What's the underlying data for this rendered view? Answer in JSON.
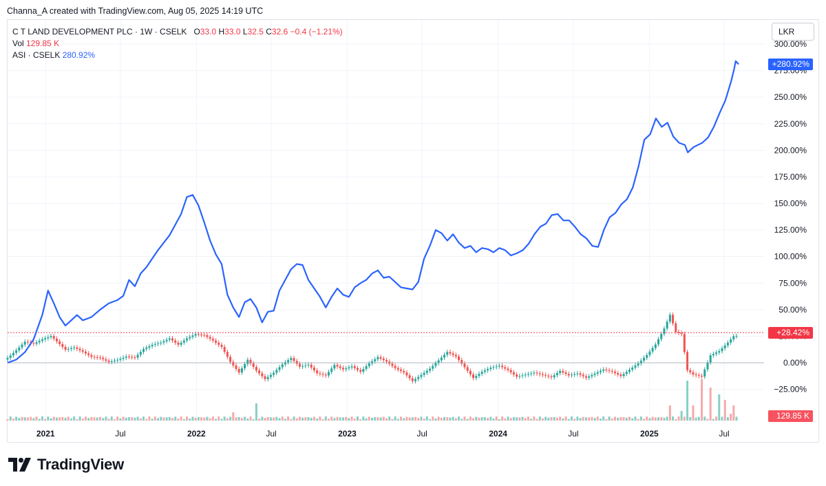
{
  "caption": "Channa_A created with TradingView.com, Aug 05, 2025 14:19 UTC",
  "legend": {
    "symbol": "C T LAND DEVELOPMENT PLC · 1W · CSELK",
    "o_label": "O",
    "o_value": "33.0",
    "h_label": "H",
    "h_value": "33.0",
    "l_label": "L",
    "l_value": "32.5",
    "c_label": "C",
    "c_value": "32.6",
    "change": "−0.4 (−1.21%)",
    "vol_label": "Vol",
    "vol_value": "129.85 K",
    "compare_label": "ASI · CSELK",
    "compare_value": "280.92%"
  },
  "currency_button": "LKR",
  "tags": {
    "asi": "+280.92%",
    "price": "+28.42%",
    "volume": "129.85 K"
  },
  "brand": "TradingView",
  "colors": {
    "up": "#26a69a",
    "down": "#ef5350",
    "compare_line": "#2962ff",
    "up_volume": "#86cfc7",
    "down_volume": "#f6a9a9",
    "tag_blue": "#2962ff",
    "tag_red": "#f23645",
    "tag_volume": "#f7525f"
  },
  "chart_data": {
    "type": "line",
    "x_labels": [
      "2021",
      "Jul",
      "2022",
      "Jul",
      "2023",
      "Jul",
      "2024",
      "Jul",
      "2025",
      "Jul"
    ],
    "y_unit": "%",
    "y_ticks": [
      "300.00%",
      "275.00%",
      "250.00%",
      "225.00%",
      "200.00%",
      "175.00%",
      "150.00%",
      "125.00%",
      "100.00%",
      "75.00%",
      "50.00%",
      "25.00%",
      "0.00%",
      "−25.00%"
    ],
    "ylim": [
      -35,
      305
    ],
    "series": [
      {
        "name": "ASI · CSELK",
        "style": "line",
        "points": [
          [
            "2020-10-01",
            0
          ],
          [
            "2020-10-22",
            3
          ],
          [
            "2020-11-12",
            10
          ],
          [
            "2020-12-03",
            22
          ],
          [
            "2020-12-24",
            45
          ],
          [
            "2021-01-07",
            68
          ],
          [
            "2021-01-21",
            56
          ],
          [
            "2021-02-04",
            43
          ],
          [
            "2021-02-18",
            35
          ],
          [
            "2021-03-04",
            40
          ],
          [
            "2021-03-18",
            45
          ],
          [
            "2021-04-01",
            40
          ],
          [
            "2021-04-22",
            43
          ],
          [
            "2021-05-13",
            50
          ],
          [
            "2021-06-03",
            56
          ],
          [
            "2021-06-24",
            59
          ],
          [
            "2021-07-08",
            63
          ],
          [
            "2021-07-22",
            78
          ],
          [
            "2021-08-05",
            72
          ],
          [
            "2021-08-19",
            84
          ],
          [
            "2021-09-02",
            90
          ],
          [
            "2021-09-16",
            98
          ],
          [
            "2021-09-30",
            106
          ],
          [
            "2021-10-14",
            113
          ],
          [
            "2021-10-28",
            120
          ],
          [
            "2021-11-11",
            130
          ],
          [
            "2021-11-25",
            140
          ],
          [
            "2021-12-09",
            156
          ],
          [
            "2021-12-23",
            158
          ],
          [
            "2022-01-06",
            148
          ],
          [
            "2022-01-20",
            132
          ],
          [
            "2022-02-03",
            115
          ],
          [
            "2022-02-17",
            102
          ],
          [
            "2022-03-03",
            93
          ],
          [
            "2022-03-17",
            64
          ],
          [
            "2022-03-31",
            52
          ],
          [
            "2022-04-14",
            43
          ],
          [
            "2022-04-28",
            57
          ],
          [
            "2022-05-12",
            60
          ],
          [
            "2022-05-26",
            52
          ],
          [
            "2022-06-09",
            38
          ],
          [
            "2022-06-23",
            48
          ],
          [
            "2022-07-07",
            49
          ],
          [
            "2022-07-21",
            68
          ],
          [
            "2022-08-04",
            78
          ],
          [
            "2022-08-18",
            88
          ],
          [
            "2022-09-01",
            93
          ],
          [
            "2022-09-15",
            92
          ],
          [
            "2022-09-29",
            78
          ],
          [
            "2022-10-13",
            70
          ],
          [
            "2022-10-27",
            62
          ],
          [
            "2022-11-10",
            52
          ],
          [
            "2022-11-24",
            62
          ],
          [
            "2022-12-08",
            70
          ],
          [
            "2022-12-22",
            64
          ],
          [
            "2023-01-05",
            62
          ],
          [
            "2023-01-19",
            71
          ],
          [
            "2023-02-02",
            75
          ],
          [
            "2023-02-16",
            78
          ],
          [
            "2023-03-02",
            84
          ],
          [
            "2023-03-16",
            87
          ],
          [
            "2023-03-30",
            80
          ],
          [
            "2023-04-13",
            81
          ],
          [
            "2023-04-27",
            76
          ],
          [
            "2023-05-11",
            71
          ],
          [
            "2023-05-25",
            70
          ],
          [
            "2023-06-08",
            69
          ],
          [
            "2023-06-22",
            76
          ],
          [
            "2023-07-06",
            98
          ],
          [
            "2023-07-20",
            110
          ],
          [
            "2023-08-03",
            125
          ],
          [
            "2023-08-17",
            122
          ],
          [
            "2023-08-31",
            115
          ],
          [
            "2023-09-14",
            121
          ],
          [
            "2023-09-28",
            113
          ],
          [
            "2023-10-12",
            108
          ],
          [
            "2023-10-26",
            110
          ],
          [
            "2023-11-09",
            104
          ],
          [
            "2023-11-23",
            108
          ],
          [
            "2023-12-07",
            107
          ],
          [
            "2023-12-21",
            104
          ],
          [
            "2024-01-04",
            108
          ],
          [
            "2024-01-18",
            106
          ],
          [
            "2024-02-01",
            101
          ],
          [
            "2024-02-15",
            103
          ],
          [
            "2024-03-01",
            106
          ],
          [
            "2024-03-15",
            112
          ],
          [
            "2024-03-29",
            121
          ],
          [
            "2024-04-12",
            128
          ],
          [
            "2024-04-26",
            131
          ],
          [
            "2024-05-10",
            139
          ],
          [
            "2024-05-24",
            140
          ],
          [
            "2024-06-07",
            134
          ],
          [
            "2024-06-21",
            134
          ],
          [
            "2024-07-05",
            128
          ],
          [
            "2024-07-19",
            121
          ],
          [
            "2024-08-02",
            117
          ],
          [
            "2024-08-16",
            110
          ],
          [
            "2024-08-30",
            109
          ],
          [
            "2024-09-13",
            125
          ],
          [
            "2024-09-27",
            137
          ],
          [
            "2024-10-11",
            141
          ],
          [
            "2024-10-25",
            149
          ],
          [
            "2024-11-08",
            154
          ],
          [
            "2024-11-22",
            165
          ],
          [
            "2024-12-06",
            185
          ],
          [
            "2024-12-20",
            210
          ],
          [
            "2025-01-03",
            215
          ],
          [
            "2025-01-17",
            230
          ],
          [
            "2025-01-31",
            222
          ],
          [
            "2025-02-14",
            226
          ],
          [
            "2025-02-28",
            213
          ],
          [
            "2025-03-14",
            207
          ],
          [
            "2025-03-28",
            205
          ],
          [
            "2025-04-04",
            198
          ],
          [
            "2025-04-18",
            203
          ],
          [
            "2025-05-09",
            207
          ],
          [
            "2025-05-23",
            212
          ],
          [
            "2025-06-06",
            222
          ],
          [
            "2025-06-20",
            235
          ],
          [
            "2025-07-04",
            247
          ],
          [
            "2025-07-18",
            265
          ],
          [
            "2025-07-25",
            276
          ],
          [
            "2025-07-29",
            284
          ],
          [
            "2025-08-05",
            280.92
          ]
        ]
      },
      {
        "name": "C T LAND DEVELOPMENT PLC",
        "style": "candles",
        "points": [
          [
            "2020-10-01",
            3
          ],
          [
            "2020-10-22",
            10
          ],
          [
            "2020-11-12",
            18
          ],
          [
            "2020-12-03",
            16
          ],
          [
            "2020-12-24",
            20
          ],
          [
            "2021-01-14",
            23
          ],
          [
            "2021-01-28",
            18
          ],
          [
            "2021-02-18",
            10
          ],
          [
            "2021-03-11",
            12
          ],
          [
            "2021-04-01",
            8
          ],
          [
            "2021-04-22",
            3
          ],
          [
            "2021-05-13",
            2
          ],
          [
            "2021-06-03",
            -2
          ],
          [
            "2021-06-24",
            0
          ],
          [
            "2021-07-15",
            3
          ],
          [
            "2021-08-05",
            2
          ],
          [
            "2021-08-26",
            10
          ],
          [
            "2021-09-16",
            14
          ],
          [
            "2021-10-07",
            16
          ],
          [
            "2021-10-28",
            20
          ],
          [
            "2021-11-18",
            14
          ],
          [
            "2021-12-09",
            20
          ],
          [
            "2021-12-30",
            24
          ],
          [
            "2022-01-20",
            23
          ],
          [
            "2022-02-10",
            18
          ],
          [
            "2022-03-03",
            12
          ],
          [
            "2022-03-24",
            -2
          ],
          [
            "2022-04-14",
            -12
          ],
          [
            "2022-05-05",
            0
          ],
          [
            "2022-05-26",
            -10
          ],
          [
            "2022-06-16",
            -18
          ],
          [
            "2022-07-07",
            -12
          ],
          [
            "2022-07-28",
            -4
          ],
          [
            "2022-08-18",
            2
          ],
          [
            "2022-09-08",
            -6
          ],
          [
            "2022-09-29",
            -4
          ],
          [
            "2022-10-20",
            -12
          ],
          [
            "2022-11-10",
            -14
          ],
          [
            "2022-12-01",
            -4
          ],
          [
            "2022-12-22",
            -8
          ],
          [
            "2023-01-12",
            -5
          ],
          [
            "2023-02-02",
            -10
          ],
          [
            "2023-02-23",
            -2
          ],
          [
            "2023-03-16",
            4
          ],
          [
            "2023-04-06",
            0
          ],
          [
            "2023-04-27",
            -6
          ],
          [
            "2023-05-18",
            -10
          ],
          [
            "2023-06-08",
            -18
          ],
          [
            "2023-06-29",
            -12
          ],
          [
            "2023-07-20",
            -6
          ],
          [
            "2023-08-10",
            2
          ],
          [
            "2023-08-31",
            10
          ],
          [
            "2023-09-21",
            6
          ],
          [
            "2023-10-12",
            -4
          ],
          [
            "2023-11-02",
            -14
          ],
          [
            "2023-11-23",
            -8
          ],
          [
            "2023-12-14",
            -4
          ],
          [
            "2024-01-04",
            -2
          ],
          [
            "2024-01-25",
            -6
          ],
          [
            "2024-02-15",
            -12
          ],
          [
            "2024-03-07",
            -10
          ],
          [
            "2024-03-28",
            -8
          ],
          [
            "2024-04-18",
            -10
          ],
          [
            "2024-05-09",
            -12
          ],
          [
            "2024-05-30",
            -6
          ],
          [
            "2024-06-20",
            -10
          ],
          [
            "2024-07-11",
            -8
          ],
          [
            "2024-08-01",
            -12
          ],
          [
            "2024-08-22",
            -8
          ],
          [
            "2024-09-12",
            -4
          ],
          [
            "2024-10-03",
            -6
          ],
          [
            "2024-10-24",
            -10
          ],
          [
            "2024-11-14",
            -4
          ],
          [
            "2024-12-05",
            2
          ],
          [
            "2024-12-26",
            10
          ],
          [
            "2025-01-16",
            20
          ],
          [
            "2025-02-06",
            35
          ],
          [
            "2025-02-20",
            48
          ],
          [
            "2025-03-06",
            32
          ],
          [
            "2025-03-20",
            30
          ],
          [
            "2025-04-03",
            -4
          ],
          [
            "2025-04-17",
            -8
          ],
          [
            "2025-05-08",
            -10
          ],
          [
            "2025-05-29",
            10
          ],
          [
            "2025-06-19",
            14
          ],
          [
            "2025-07-10",
            22
          ],
          [
            "2025-07-24",
            28
          ],
          [
            "2025-08-05",
            28.42
          ]
        ]
      }
    ]
  }
}
